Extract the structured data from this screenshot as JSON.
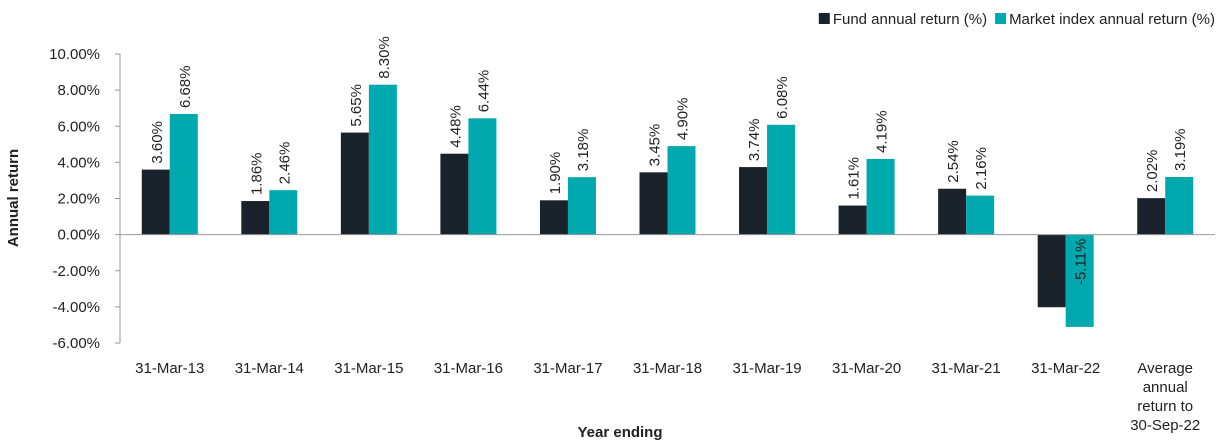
{
  "chart_data": {
    "type": "bar",
    "ylabel": "Annual return",
    "xlabel": "Year ending",
    "categories": [
      "31-Mar-13",
      "31-Mar-14",
      "31-Mar-15",
      "31-Mar-16",
      "31-Mar-17",
      "31-Mar-18",
      "31-Mar-19",
      "31-Mar-20",
      "31-Mar-21",
      "31-Mar-22",
      "Average annual return to 30-Sep-22"
    ],
    "series": [
      {
        "name": "Fund annual return (%)",
        "color": "#1a222b",
        "values": [
          3.6,
          1.86,
          5.65,
          4.48,
          1.9,
          3.45,
          3.74,
          1.61,
          2.54,
          -4.02,
          2.02
        ],
        "value_labels": [
          "3.60%",
          "1.86%",
          "5.65%",
          "4.48%",
          "1.90%",
          "3.45%",
          "3.74%",
          "1.61%",
          "2.54%",
          "-4.02%",
          "2.02%"
        ]
      },
      {
        "name": "Market index annual return (%)",
        "color": "#00a9ad",
        "values": [
          6.68,
          2.46,
          8.3,
          6.44,
          3.18,
          4.9,
          6.08,
          4.19,
          2.16,
          -5.11,
          3.19
        ],
        "value_labels": [
          "6.68%",
          "2.46%",
          "8.30%",
          "6.44%",
          "3.18%",
          "4.90%",
          "6.08%",
          "4.19%",
          "2.16%",
          "-5.11%",
          "3.19%"
        ]
      }
    ],
    "ylim": [
      -6,
      10
    ],
    "yticks": [
      {
        "value": -6,
        "label": "-6.00%"
      },
      {
        "value": -4,
        "label": "-4.00%"
      },
      {
        "value": -2,
        "label": "-2.00%"
      },
      {
        "value": 0,
        "label": "0.00%"
      },
      {
        "value": 2,
        "label": "2.00%"
      },
      {
        "value": 4,
        "label": "4.00%"
      },
      {
        "value": 6,
        "label": "6.00%"
      },
      {
        "value": 8,
        "label": "8.00%"
      },
      {
        "value": 10,
        "label": "10.00%"
      }
    ],
    "grid": false,
    "legend": "top-right"
  }
}
